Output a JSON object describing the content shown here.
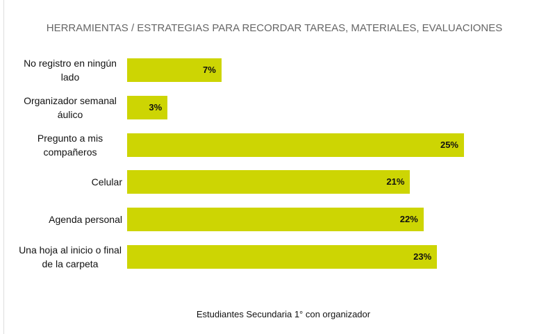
{
  "chart_data": {
    "type": "bar",
    "orientation": "horizontal",
    "title": "HERRAMIENTAS / ESTRATEGIAS PARA RECORDAR TAREAS, MATERIALES, EVALUACIONES",
    "categories": [
      "No registro en ningún lado",
      "Organizador semanal áulico",
      "Pregunto a mis compañeros",
      "Celular",
      "Agenda personal",
      "Una hoja al inicio o final de la carpeta"
    ],
    "values": [
      7,
      3,
      25,
      21,
      22,
      23
    ],
    "value_labels": [
      "7%",
      "3%",
      "25%",
      "21%",
      "22%",
      "23%"
    ],
    "color": "#cdd503",
    "x_label": "Estudiantes Secundaria 1° con organizador"
  }
}
